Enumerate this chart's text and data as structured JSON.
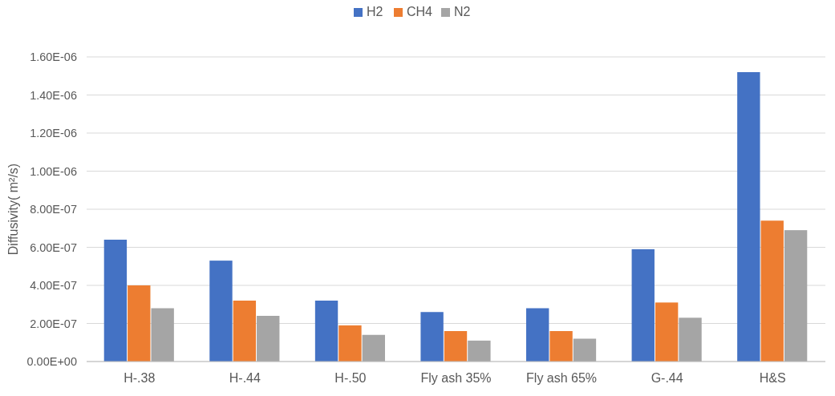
{
  "chart_data": {
    "type": "bar",
    "ylabel": "Diffusivity( m²/s)",
    "categories": [
      "H-.38",
      "H-.44",
      "H-.50",
      "Fly ash 35%",
      "Fly ash 65%",
      "G-.44",
      "H&S"
    ],
    "series": [
      {
        "name": "H2",
        "color": "#4472c4",
        "values": [
          6.4e-07,
          5.3e-07,
          3.2e-07,
          2.6e-07,
          2.8e-07,
          5.9e-07,
          1.52e-06
        ]
      },
      {
        "name": "CH4",
        "color": "#ed7d31",
        "values": [
          4e-07,
          3.2e-07,
          1.9e-07,
          1.6e-07,
          1.6e-07,
          3.1e-07,
          7.4e-07
        ]
      },
      {
        "name": "N2",
        "color": "#a5a5a5",
        "values": [
          2.8e-07,
          2.4e-07,
          1.4e-07,
          1.1e-07,
          1.2e-07,
          2.3e-07,
          6.9e-07
        ]
      }
    ],
    "ylim": [
      0,
      1.6e-06
    ],
    "yticks": [
      {
        "value": 0,
        "label": "0.00E+00"
      },
      {
        "value": 2e-07,
        "label": "2.00E-07"
      },
      {
        "value": 4e-07,
        "label": "4.00E-07"
      },
      {
        "value": 6e-07,
        "label": "6.00E-07"
      },
      {
        "value": 8e-07,
        "label": "8.00E-07"
      },
      {
        "value": 1e-06,
        "label": "1.00E-06"
      },
      {
        "value": 1.2e-06,
        "label": "1.20E-06"
      },
      {
        "value": 1.4e-06,
        "label": "1.40E-06"
      },
      {
        "value": 1.6e-06,
        "label": "1.60E-06"
      }
    ],
    "grid": "y",
    "legend": "top"
  }
}
